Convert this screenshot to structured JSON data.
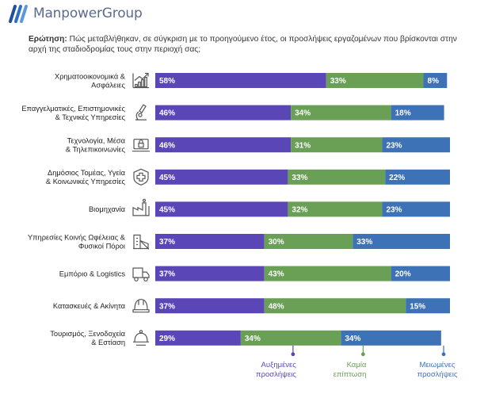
{
  "header": {
    "brand": "ManpowerGroup",
    "question_label": "Ερώτηση:",
    "question_text": "Πώς μεταβλήθηκαν, σε σύγκριση με το προηγούμενο έτος, οι προσλήψεις εργαζομένων που βρίσκονται στην αρχή της σταδιοδρομίας τους στην περιοχή σας;"
  },
  "colors": {
    "increased": "#5b46b8",
    "no_change": "#6aa056",
    "decreased": "#3d73b6",
    "icon": "#555555"
  },
  "icons": [
    "finance-chart-icon",
    "microscope-icon",
    "laptop-lock-icon",
    "shield-cross-icon",
    "factory-icon",
    "utilities-building-icon",
    "delivery-truck-icon",
    "hard-hat-icon",
    "cloche-icon"
  ],
  "chart_data": {
    "type": "bar",
    "orientation": "horizontal",
    "stacked": true,
    "unit": "%",
    "categories": [
      [
        "Χρηματοοικονομικά &",
        "Ασφάλειες"
      ],
      [
        "Επαγγελματικές, Επιστημονικές",
        "& Τεχνικές Υπηρεσίες"
      ],
      [
        "Τεχνολογία, Μέσα",
        "& Τηλεπικοινωνίες"
      ],
      [
        "Δημόσιος Τομέας, Υγεία",
        "& Κοινωνικές Υπηρεσίες"
      ],
      [
        "Βιομηχανία"
      ],
      [
        "Υπηρεσίες Κοινής Ωφέλειας &",
        "Φυσικοί Πόροι"
      ],
      [
        "Εμπόριο & Logistics"
      ],
      [
        "Κατασκευές & Ακίνητα"
      ],
      [
        "Τουρισμός, Ξενοδοχεία",
        "& Εστίαση"
      ]
    ],
    "series": [
      {
        "name": [
          "Αυξημένες",
          "προσλήψεις"
        ],
        "values": [
          58,
          46,
          46,
          45,
          45,
          37,
          37,
          37,
          29
        ]
      },
      {
        "name": [
          "Καμία",
          "επίπτωση"
        ],
        "values": [
          33,
          34,
          31,
          33,
          32,
          30,
          43,
          48,
          34
        ]
      },
      {
        "name": [
          "Μειωμένες",
          "προσλήψεις"
        ],
        "values": [
          8,
          18,
          23,
          22,
          23,
          33,
          20,
          15,
          34
        ]
      }
    ]
  }
}
